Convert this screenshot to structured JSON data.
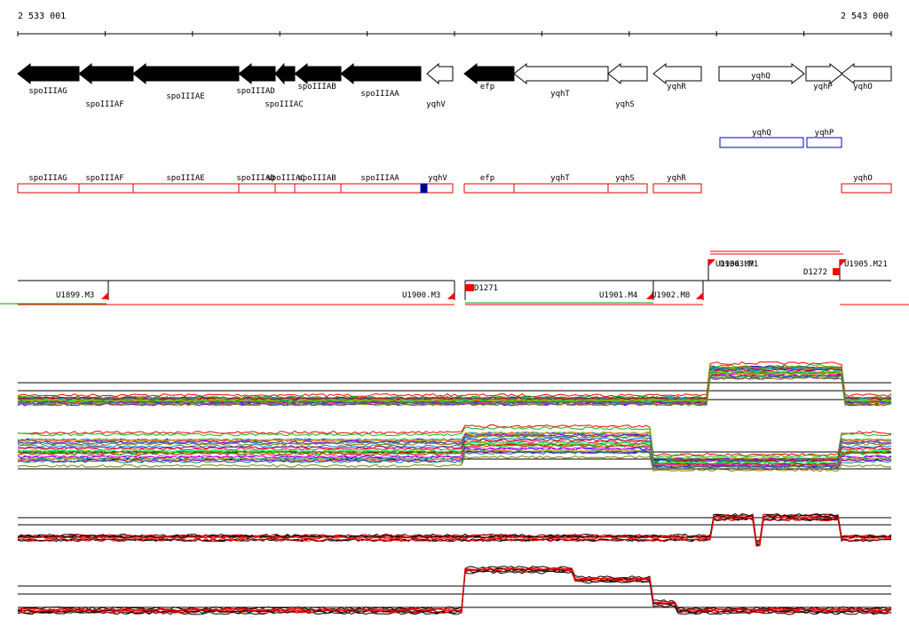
{
  "coordinates": {
    "start": "2 533 001",
    "end": "2 543 000"
  },
  "colors": {
    "annotation_border": "#e00000",
    "blue_outline": "#0000c0",
    "blue_fill": "#000080",
    "segment_red": "#ff0000",
    "segment_green": "#00a000",
    "trace_black": "#000000",
    "trace_red": "#ff0000"
  },
  "genes_top": [
    {
      "name": "spoIIIAG",
      "strand": "-",
      "fill": "black"
    },
    {
      "name": "spoIIIAF",
      "strand": "-",
      "fill": "black"
    },
    {
      "name": "spoIIIAE",
      "strand": "-",
      "fill": "black"
    },
    {
      "name": "spoIIIAD",
      "strand": "-",
      "fill": "black"
    },
    {
      "name": "spoIIIAC",
      "strand": "-",
      "fill": "black"
    },
    {
      "name": "spoIIIAB",
      "strand": "-",
      "fill": "black"
    },
    {
      "name": "spoIIIAA",
      "strand": "-",
      "fill": "black"
    },
    {
      "name": "yqhV",
      "strand": "-",
      "fill": "white"
    },
    {
      "name": "efp",
      "strand": "-",
      "fill": "black"
    },
    {
      "name": "yqhT",
      "strand": "-",
      "fill": "white"
    },
    {
      "name": "yqhS",
      "strand": "-",
      "fill": "white"
    },
    {
      "name": "yqhR",
      "strand": "-",
      "fill": "white"
    },
    {
      "name": "yqhQ",
      "strand": "+",
      "fill": "white"
    },
    {
      "name": "yqhP",
      "strand": "+",
      "fill": "white"
    },
    {
      "name": "yqhO",
      "strand": "-",
      "fill": "white"
    }
  ],
  "blue_boxes": [
    {
      "name": "yqhQ"
    },
    {
      "name": "yqhP"
    }
  ],
  "annotation_boxes": [
    {
      "name": "spoIIIAG"
    },
    {
      "name": "spoIIIAF"
    },
    {
      "name": "spoIIIAE"
    },
    {
      "name": "spoIIIAD"
    },
    {
      "name": "spoIIIAC"
    },
    {
      "name": "spoIIIAB"
    },
    {
      "name": "spoIIIAA"
    },
    {
      "name": "yqhV"
    },
    {
      "name": "efp"
    },
    {
      "name": "yqhT"
    },
    {
      "name": "yqhS"
    },
    {
      "name": "yqhR"
    },
    {
      "name": "yqhO"
    }
  ],
  "segments": [
    {
      "label": "U1899.M3"
    },
    {
      "label": "U1900.M3"
    },
    {
      "label": "D1271"
    },
    {
      "label": "U1901.M4"
    },
    {
      "label": "U1902.M8"
    },
    {
      "label": "U1904.M7"
    },
    {
      "label": "D1303.M1"
    },
    {
      "label": "D1272"
    },
    {
      "label": "U1905.M21"
    }
  ]
}
